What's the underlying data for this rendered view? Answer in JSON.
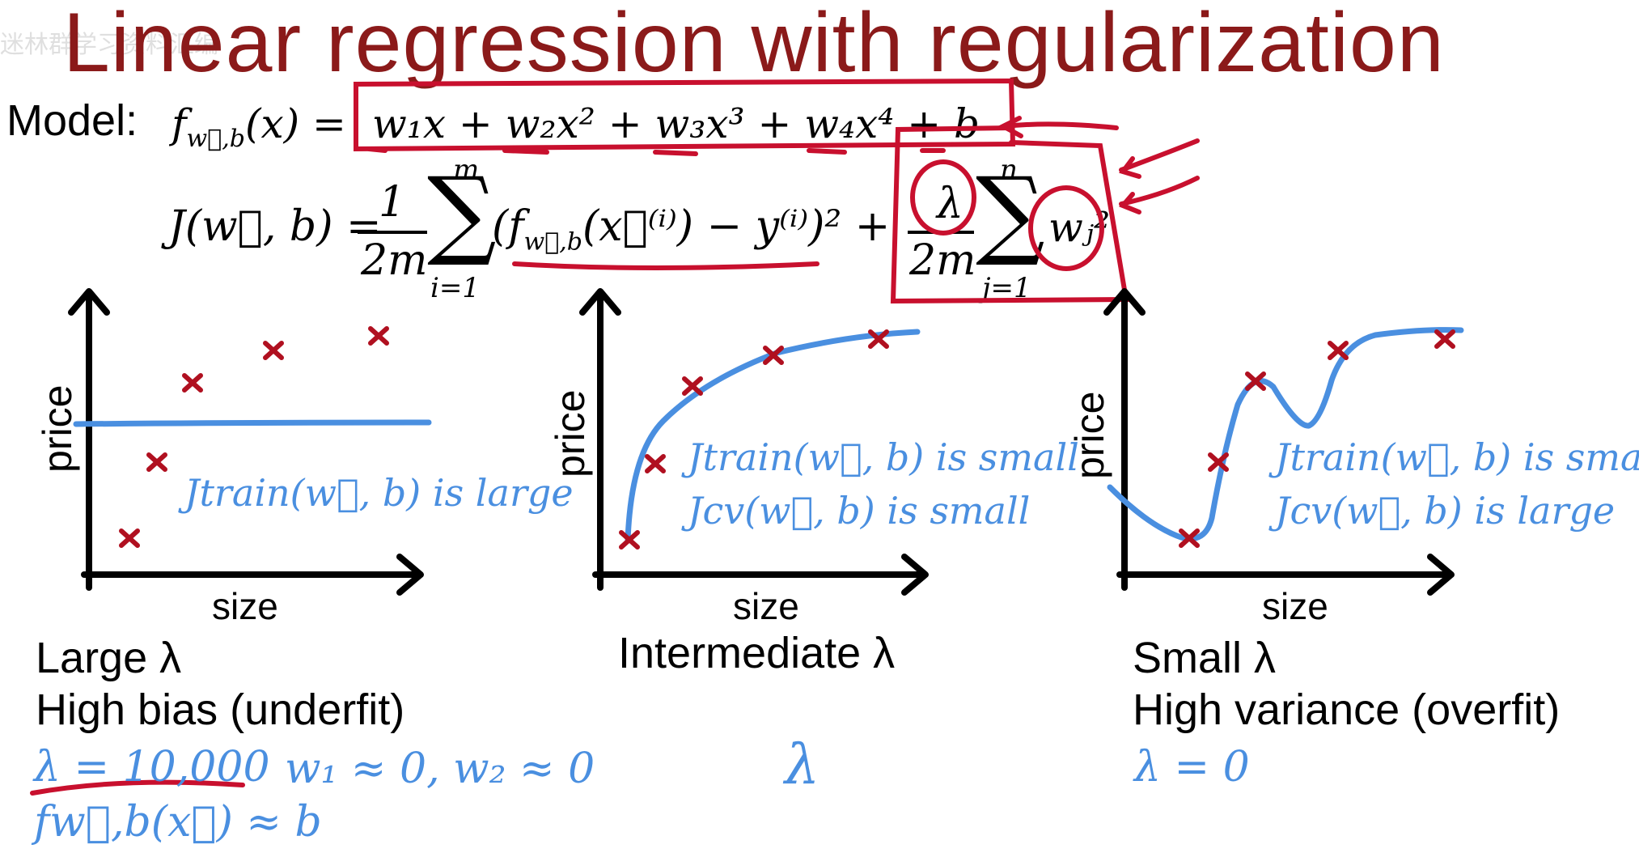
{
  "title": "Linear regression with regularization",
  "watermark": "迷林群学习资料汇编",
  "model": {
    "label": "Model:",
    "f": "f",
    "f_sub": "w⃗,b",
    "f_arg": "(x) =",
    "rhs": "w₁x + w₂x² + w₃x³ + w₄x⁴ + b"
  },
  "cost": {
    "lhs": "J(w⃗, b) =",
    "frac1_num": "1",
    "frac1_den": "2m",
    "sum1_top": "m",
    "sum1_bottom": "i=1",
    "term": "(f",
    "term_sub": "w⃗,b",
    "term_rest": "(x⃗⁽ⁱ⁾) − y⁽ⁱ⁾)²  +",
    "frac2_num": "λ",
    "frac2_den": "2m",
    "sum2_top": "n",
    "sum2_bottom": "j=1",
    "reg_term": "wⱼ²"
  },
  "panels": [
    {
      "ylabel": "price",
      "xlabel": "size",
      "notes": [
        "Jtrain(w⃗, b) is large"
      ],
      "caption_lines": [
        "Large λ",
        "High bias (underfit)"
      ],
      "handwritten": [
        "λ = 10,000",
        "w₁ ≈ 0, w₂ ≈ 0",
        "fw⃗,b(x⃗) ≈ b"
      ]
    },
    {
      "ylabel": "price",
      "xlabel": "size",
      "notes": [
        "Jtrain(w⃗, b) is small",
        "Jcv(w⃗, b) is small"
      ],
      "caption_lines": [
        "Intermediate λ"
      ],
      "handwritten": [
        "λ"
      ]
    },
    {
      "ylabel": "price",
      "xlabel": "size",
      "notes": [
        "Jtrain(w⃗, b) is small",
        "Jcv(w⃗, b) is large"
      ],
      "caption_lines": [
        "Small λ",
        "High variance (overfit)"
      ],
      "handwritten": [
        "λ = 0"
      ]
    }
  ],
  "colors": {
    "title": "#8b1a1a",
    "annotation_red": "#c8102e",
    "handwriting_blue": "#4a8fe0",
    "data_point": "#b01020",
    "text": "#000000"
  }
}
